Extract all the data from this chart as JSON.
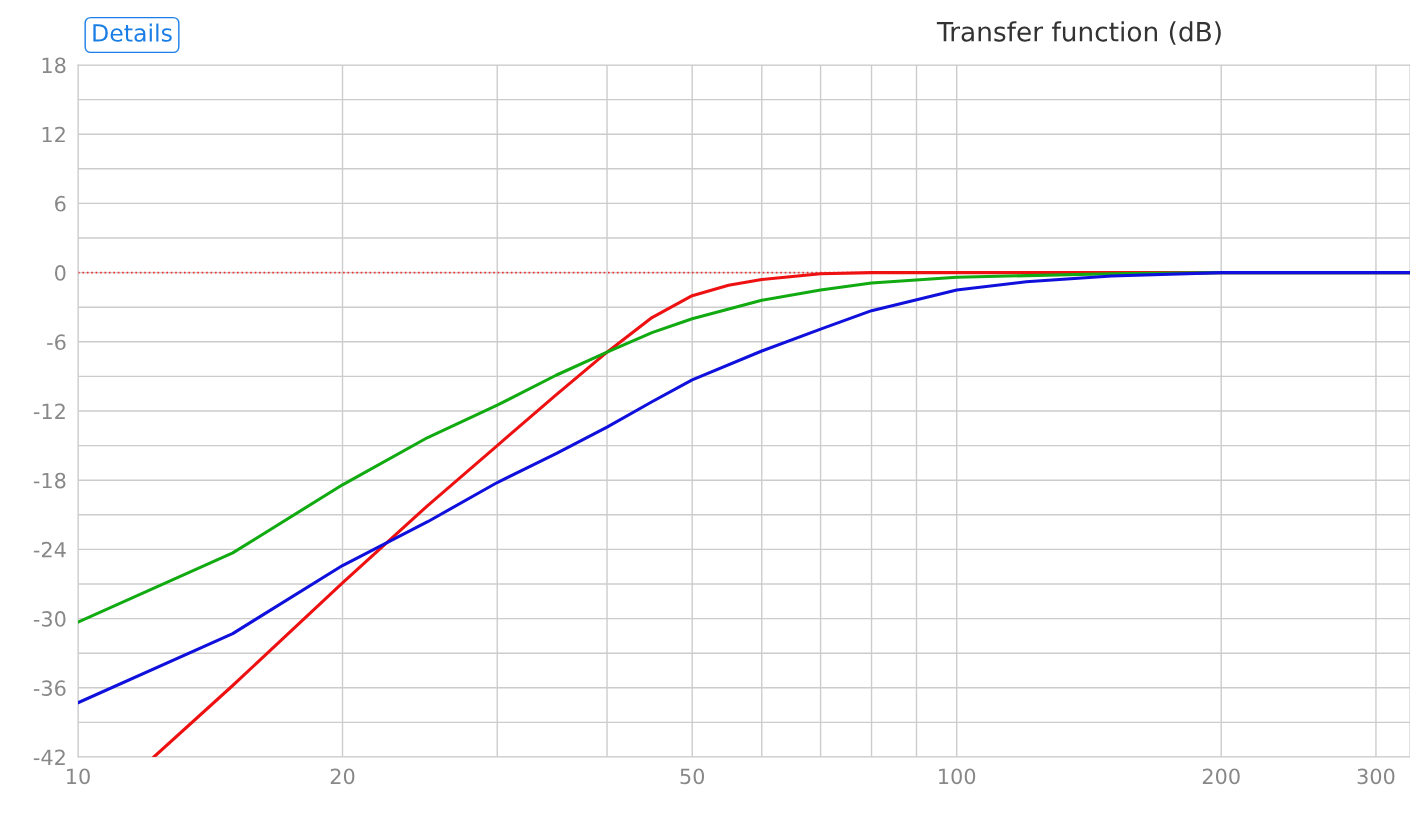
{
  "chart_data": {
    "type": "line",
    "title": "Transfer function (dB)",
    "annotations": [
      "Details"
    ],
    "log": "x",
    "grid": true,
    "legend": false,
    "marker": "none",
    "line_style": "solid",
    "xlim": [
      10,
      328
    ],
    "ylim": [
      -42,
      18
    ],
    "xticks": [
      10,
      20,
      {
        "value": 30,
        "label": null
      },
      {
        "value": 40,
        "label": null
      },
      50,
      {
        "value": 60,
        "label": null
      },
      {
        "value": 70,
        "label": null
      },
      {
        "value": 80,
        "label": null
      },
      {
        "value": 90,
        "label": null
      },
      100,
      200,
      300
    ],
    "yticks": [
      -42,
      {
        "value": -39,
        "label": null
      },
      -36,
      {
        "value": -33,
        "label": null
      },
      -30,
      {
        "value": -27,
        "label": null
      },
      -24,
      {
        "value": -21,
        "label": null
      },
      -18,
      {
        "value": -15,
        "label": null
      },
      -12,
      {
        "value": -9,
        "label": null
      },
      -6,
      {
        "value": -3,
        "label": null
      },
      0,
      {
        "value": 3,
        "label": null
      },
      6,
      {
        "value": 9,
        "label": null
      },
      12,
      {
        "value": 15,
        "label": null
      },
      18
    ],
    "ref_lines": [
      {
        "axis": "y",
        "value": 0,
        "color": "#ee3333",
        "line_style": "dotted"
      }
    ],
    "series": [
      {
        "color": "#ee1111",
        "x": [
          12.2,
          15,
          20,
          25,
          30,
          35,
          40,
          45,
          50,
          55,
          60,
          70,
          80,
          100,
          200,
          328
        ],
        "values": [
          -42,
          -35.8,
          -26.9,
          -20.2,
          -15.0,
          -10.6,
          -6.9,
          -3.9,
          -2.0,
          -1.1,
          -0.6,
          -0.1,
          0,
          0,
          0,
          0
        ]
      },
      {
        "color": "#11aa11",
        "x": [
          10,
          15,
          20,
          25,
          30,
          35,
          40,
          45,
          50,
          60,
          70,
          80,
          100,
          150,
          200,
          328
        ],
        "values": [
          -30.3,
          -24.3,
          -18.4,
          -14.3,
          -11.5,
          -8.9,
          -6.9,
          -5.2,
          -4.0,
          -2.4,
          -1.5,
          -0.9,
          -0.4,
          -0.1,
          0,
          0
        ]
      },
      {
        "color": "#1010dd",
        "x": [
          10,
          15,
          20,
          25,
          30,
          35,
          40,
          45,
          50,
          60,
          70,
          80,
          100,
          120,
          150,
          200,
          328
        ],
        "values": [
          -37.3,
          -31.3,
          -25.4,
          -21.6,
          -18.2,
          -15.7,
          -13.4,
          -11.2,
          -9.3,
          -6.8,
          -4.9,
          -3.3,
          -1.5,
          -0.8,
          -0.3,
          0,
          0
        ]
      }
    ]
  }
}
